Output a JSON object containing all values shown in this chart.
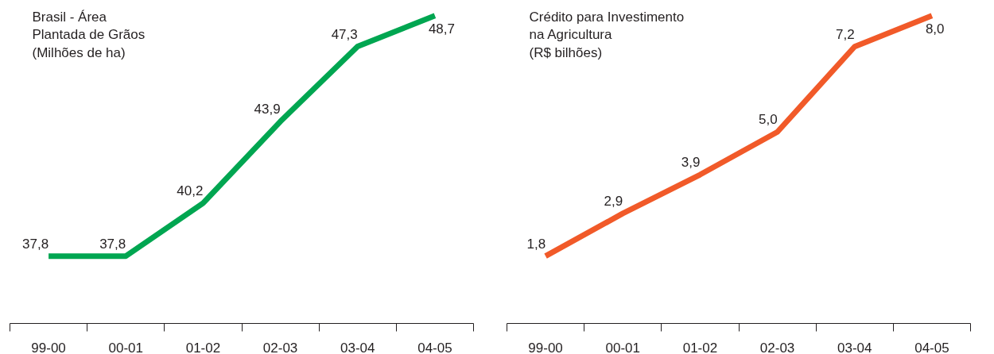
{
  "chart_data": [
    {
      "type": "line",
      "title": "Brasil - Área\nPlantada de Grãos\n(Milhões de ha)",
      "categories": [
        "99-00",
        "00-01",
        "01-02",
        "02-03",
        "03-04",
        "04-05"
      ],
      "series": [
        {
          "color": "#00a651",
          "values": [
            37.8,
            37.8,
            40.2,
            43.9,
            47.3,
            48.7
          ],
          "value_labels": [
            "37,8",
            "37,8",
            "40,2",
            "43,9",
            "47,3",
            "48,7"
          ]
        }
      ],
      "tick_labels": "x",
      "marker": "none",
      "line_style": "solid"
    },
    {
      "type": "line",
      "title": "Crédito para Investimento\nna Agricultura\n(R$ bilhões)",
      "categories": [
        "99-00",
        "00-01",
        "01-02",
        "02-03",
        "03-04",
        "04-05"
      ],
      "series": [
        {
          "color": "#f15a29",
          "values": [
            1.8,
            2.9,
            3.9,
            5.0,
            7.2,
            8.0
          ],
          "value_labels": [
            "1,8",
            "2,9",
            "3,9",
            "5,0",
            "7,2",
            "8,0"
          ]
        }
      ],
      "tick_labels": "x",
      "marker": "none",
      "line_style": "solid"
    }
  ]
}
